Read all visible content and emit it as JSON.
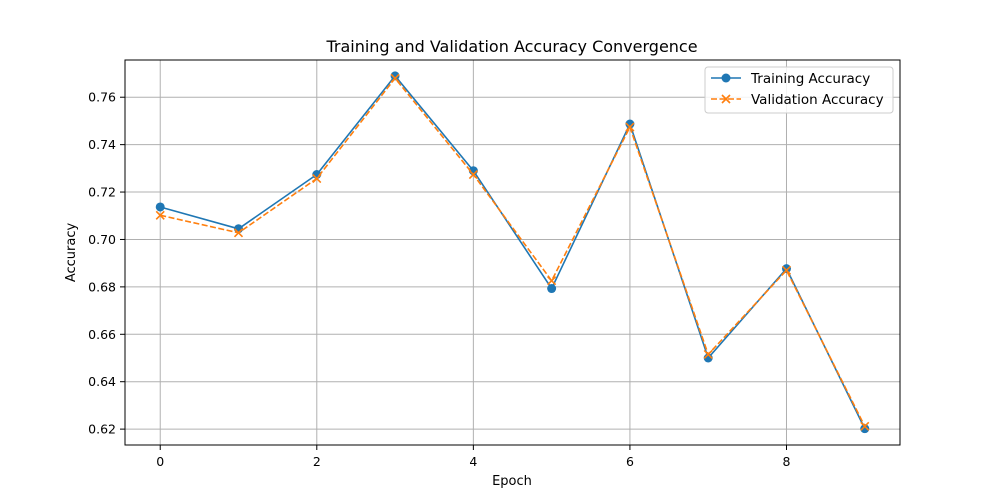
{
  "chart_data": {
    "type": "line",
    "title": "Training and Validation Accuracy Convergence",
    "xlabel": "Epoch",
    "ylabel": "Accuracy",
    "x": [
      0,
      1,
      2,
      3,
      4,
      5,
      6,
      7,
      8,
      9
    ],
    "xlim": [
      -0.45,
      9.45
    ],
    "ylim": [
      0.6133,
      0.7757
    ],
    "xticks": [
      0,
      2,
      4,
      6,
      8
    ],
    "yticks": [
      0.62,
      0.64,
      0.66,
      0.68,
      0.7,
      0.72,
      0.74,
      0.76
    ],
    "grid": true,
    "legend_position": "top-right",
    "series": [
      {
        "name": "Training Accuracy",
        "color": "#1f77b4",
        "marker": "circle",
        "linestyle": "solid",
        "values": [
          0.7137,
          0.7045,
          0.7274,
          0.769,
          0.729,
          0.6793,
          0.7487,
          0.65,
          0.6877,
          0.6202
        ]
      },
      {
        "name": "Validation Accuracy",
        "color": "#ff7f0e",
        "marker": "x",
        "linestyle": "dashed",
        "values": [
          0.7102,
          0.7028,
          0.7257,
          0.768,
          0.7274,
          0.6826,
          0.7474,
          0.6515,
          0.687,
          0.6212
        ]
      }
    ]
  }
}
